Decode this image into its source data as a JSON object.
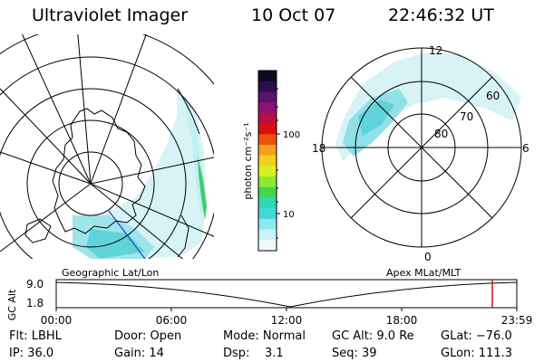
{
  "header": {
    "title": "Ultraviolet Imager",
    "date": "10 Oct 07",
    "time": "22:46:32 UT"
  },
  "colorbar": {
    "label": "photon cm⁻²s⁻¹",
    "ticks": [
      "100",
      "10"
    ],
    "colors": [
      "#0b0b20",
      "#2a0f50",
      "#5a1272",
      "#8b1470",
      "#b81040",
      "#d81010",
      "#ee5010",
      "#f5a020",
      "#f0d020",
      "#d8f020",
      "#90e830",
      "#40d850",
      "#30d8b0",
      "#40d8d8",
      "#90e8f0",
      "#c8f4f8",
      "#eef9fb"
    ]
  },
  "left_map": {
    "label": "Geographic Lat/Lon"
  },
  "right_map": {
    "label": "Apex MLat/MLT",
    "mlt_labels": [
      "12",
      "18",
      "6",
      "0"
    ],
    "lat_labels": [
      "60",
      "70",
      "80"
    ]
  },
  "timeline": {
    "axis_label": "GC Alt",
    "y_ticks": [
      "9.0",
      "1.8"
    ],
    "x_ticks": [
      "00:00",
      "06:00",
      "12:00",
      "18:00",
      "23:59"
    ],
    "marker_color": "#d01010"
  },
  "footer": {
    "filter": "Flt: LBHL",
    "ip": "IP: 36.0",
    "door": "Door: Open",
    "gain": "Gain: 14",
    "mode": "Mode: Normal",
    "dsp": "Dsp:    3.1",
    "gc_alt": "GC Alt: 9.0 Re",
    "seq": "Seq: 39",
    "glat": "GLat: −76.0",
    "glon": "GLon: 111.3"
  }
}
